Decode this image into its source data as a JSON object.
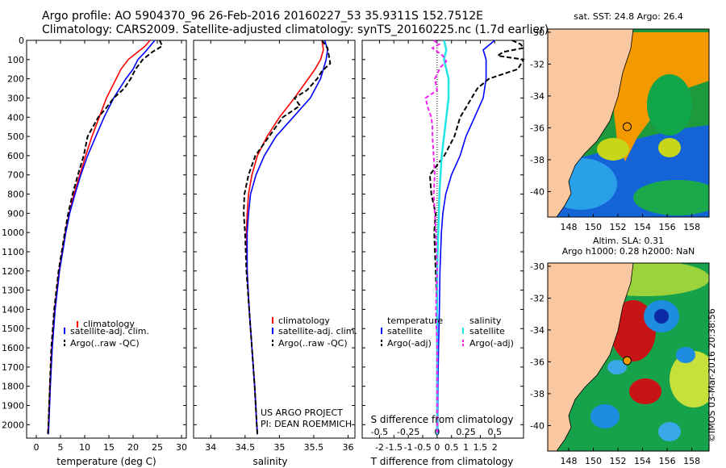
{
  "header": {
    "line1": "Argo profile: AO 5904370_96 26-Feb-2016 20160227_53 35.9311S 152.7512E",
    "line2": "Climatology: CARS2009. Satellite-adjusted climatology: synTS_20160225.nc (1.7d earlier)"
  },
  "credit": "©IMOS 03-Mar-2016 20:38:56",
  "colors": {
    "climatology": "#ff0000",
    "satellite": "#0000ff",
    "argo": "#000000",
    "sal_sat": "#22e6e6",
    "sal_argo": "#ee22ee",
    "land": "#f9c8a0",
    "ocean_sst": "#1e9a3c"
  },
  "chart_data": [
    {
      "type": "line",
      "id": "temperature",
      "xlabel": "temperature (deg C)",
      "ylabel": "",
      "xlim": [
        -2,
        31
      ],
      "ylim": [
        2070,
        0
      ],
      "xticks": [
        "0",
        "5",
        "10",
        "15",
        "20",
        "25",
        "30"
      ],
      "xtick_values": [
        0,
        5,
        10,
        15,
        20,
        25,
        30
      ],
      "yticks": [
        "0",
        "100",
        "200",
        "300",
        "400",
        "500",
        "600",
        "700",
        "800",
        "900",
        "1000",
        "1100",
        "1200",
        "1300",
        "1400",
        "1500",
        "1600",
        "1700",
        "1800",
        "1900",
        "2000"
      ],
      "ytick_values": [
        0,
        100,
        200,
        300,
        400,
        500,
        600,
        700,
        800,
        900,
        1000,
        1100,
        1200,
        1300,
        1400,
        1500,
        1600,
        1700,
        1800,
        1900,
        2000
      ],
      "legend": [
        "climatology",
        "satellite-adj. clim.",
        "Argo(..raw -QC)"
      ],
      "series": [
        {
          "name": "climatology",
          "depth": [
            0,
            30,
            60,
            100,
            150,
            200,
            300,
            400,
            500,
            600,
            700,
            800,
            900,
            1000,
            1200,
            1400,
            1600,
            1800,
            2000,
            2050
          ],
          "values": [
            23.5,
            22.5,
            21,
            19,
            17.5,
            16.5,
            14.5,
            13,
            11.5,
            10.2,
            9,
            7.8,
            6.8,
            6,
            4.7,
            3.8,
            3.2,
            2.8,
            2.5,
            2.4
          ]
        },
        {
          "name": "satellite-adj. clim.",
          "depth": [
            0,
            30,
            60,
            100,
            150,
            200,
            300,
            400,
            500,
            600,
            700,
            800,
            900,
            1000,
            1200,
            1400,
            1600,
            1800,
            2000,
            2050
          ],
          "values": [
            24.5,
            23.5,
            22.5,
            21,
            20,
            18.5,
            16,
            14,
            12.3,
            10.6,
            9.2,
            8,
            6.9,
            6.1,
            4.8,
            3.9,
            3.3,
            2.9,
            2.6,
            2.5
          ]
        },
        {
          "name": "Argo(..raw -QC)",
          "depth": [
            0,
            30,
            60,
            100,
            150,
            200,
            250,
            300,
            350,
            400,
            450,
            500,
            600,
            700,
            800,
            900,
            1000,
            1200,
            1400,
            1600,
            1800,
            2000,
            2050
          ],
          "values": [
            25.5,
            26,
            24,
            22,
            20.5,
            19.5,
            18.2,
            16,
            14.5,
            12.8,
            11.7,
            10.6,
            9.8,
            8.6,
            7.5,
            6.6,
            5.9,
            4.6,
            3.7,
            3.1,
            2.8,
            2.5,
            2.4
          ]
        }
      ]
    },
    {
      "type": "line",
      "id": "salinity",
      "xlabel": "salinity",
      "ylabel": "",
      "xlim": [
        33.75,
        36.1
      ],
      "ylim": [
        2070,
        0
      ],
      "xticks": [
        "34",
        "34.5",
        "35",
        "35.5",
        "36"
      ],
      "xtick_values": [
        34,
        34.5,
        35,
        35.5,
        36
      ],
      "legend": [
        "climatology",
        "satellite-adj. clim.",
        "Argo(..raw -QC)"
      ],
      "annotation": [
        "US ARGO PROJECT",
        "PI: DEAN ROEMMICH"
      ],
      "series": [
        {
          "name": "climatology",
          "depth": [
            0,
            50,
            100,
            150,
            200,
            300,
            400,
            500,
            600,
            700,
            800,
            900,
            1000,
            1200,
            1400,
            1600,
            1800,
            2000,
            2050
          ],
          "values": [
            35.62,
            35.64,
            35.6,
            35.52,
            35.42,
            35.22,
            35.0,
            34.82,
            34.68,
            34.6,
            34.55,
            34.53,
            34.52,
            34.53,
            34.56,
            34.6,
            34.64,
            34.67,
            34.68
          ]
        },
        {
          "name": "satellite-adj. clim.",
          "depth": [
            0,
            50,
            100,
            150,
            200,
            300,
            400,
            500,
            600,
            700,
            800,
            900,
            1000,
            1200,
            1400,
            1600,
            1800,
            2000,
            2050
          ],
          "values": [
            35.66,
            35.7,
            35.68,
            35.64,
            35.6,
            35.45,
            35.2,
            34.95,
            34.78,
            34.66,
            34.58,
            34.55,
            34.53,
            34.53,
            34.56,
            34.6,
            34.64,
            34.67,
            34.68
          ]
        },
        {
          "name": "Argo(..raw -QC)",
          "depth": [
            0,
            40,
            80,
            120,
            160,
            200,
            260,
            300,
            340,
            400,
            500,
            600,
            700,
            800,
            900,
            1000,
            1200,
            1400,
            1600,
            1800,
            2000,
            2050
          ],
          "values": [
            35.62,
            35.7,
            35.72,
            35.74,
            35.62,
            35.55,
            35.4,
            35.22,
            35.3,
            35.05,
            34.85,
            34.65,
            34.55,
            34.49,
            34.48,
            34.5,
            34.52,
            34.56,
            34.6,
            34.64,
            34.67,
            34.68
          ]
        }
      ]
    },
    {
      "type": "line",
      "id": "differences",
      "xlabel": "T difference from climatology",
      "xlabel_top": "S difference from climatology",
      "xlim": [
        -2.6,
        3.0
      ],
      "ylim": [
        2070,
        0
      ],
      "xticks": [
        "-2",
        "-1.5",
        "-1",
        "-0.5",
        "0",
        "0.5",
        "1",
        "1.5",
        "2"
      ],
      "xtick_values": [
        -2,
        -1.5,
        -1,
        -0.5,
        0,
        0.5,
        1,
        1.5,
        2
      ],
      "top_ticks": [
        "-0.5",
        "-0.25",
        "0",
        "0.25",
        "0.5"
      ],
      "top_tick_values": [
        -0.5,
        -0.25,
        0,
        0.25,
        0.5
      ],
      "legend_headers": [
        "temperature",
        "salinity"
      ],
      "legend": [
        "satellite",
        "Argo(-adj)",
        "satellite",
        "Argo(-adj)"
      ],
      "series": [
        {
          "name": "temperature satellite",
          "depth": [
            0,
            50,
            100,
            200,
            300,
            400,
            500,
            600,
            700,
            800,
            900,
            1000,
            1200,
            1400,
            1600,
            1800,
            2000,
            2050
          ],
          "values": [
            2.0,
            1.6,
            1.7,
            1.7,
            1.6,
            1.3,
            1.0,
            0.8,
            0.5,
            0.3,
            0.2,
            0.15,
            0.1,
            0.08,
            0.05,
            0.03,
            0.02,
            0.02
          ]
        },
        {
          "name": "temperature Argo(-adj)",
          "depth": [
            0,
            20,
            40,
            60,
            80,
            100,
            150,
            200,
            250,
            300,
            350,
            400,
            450,
            500,
            600,
            700,
            800,
            900,
            1000,
            1200,
            1400,
            1600,
            1800,
            2000,
            2050
          ],
          "values": [
            2.6,
            2.9,
            3.0,
            2.3,
            2.1,
            3.0,
            2.8,
            1.8,
            1.4,
            1.2,
            1.0,
            0.8,
            0.7,
            0.6,
            0.25,
            -0.25,
            -0.2,
            -0.05,
            -0.1,
            -0.05,
            0.0,
            0.0,
            0.0,
            0.0,
            0.0
          ]
        },
        {
          "name": "salinity satellite",
          "depth": [
            0,
            50,
            100,
            200,
            300,
            400,
            500,
            600,
            700,
            800,
            900,
            1000,
            1200,
            1400,
            1600,
            1800,
            2000,
            2050
          ],
          "values": [
            0.06,
            0.08,
            0.06,
            0.1,
            0.1,
            0.08,
            0.06,
            0.04,
            0.03,
            0.02,
            0.015,
            0.01,
            0.0,
            0.0,
            0.0,
            0.0,
            0.0,
            0.0
          ]
        },
        {
          "name": "salinity Argo(-adj)",
          "depth": [
            0,
            20,
            40,
            80,
            110,
            140,
            200,
            260,
            300,
            350,
            400,
            450,
            500,
            600,
            700,
            800,
            900,
            1000,
            1200,
            1400,
            1600,
            1800,
            2000,
            2050
          ],
          "values": [
            -0.03,
            0.02,
            -0.04,
            0.05,
            0.08,
            0.03,
            -0.02,
            0.0,
            -0.1,
            -0.08,
            -0.05,
            -0.04,
            -0.04,
            -0.03,
            -0.02,
            -0.03,
            -0.02,
            -0.01,
            0.0,
            -0.01,
            0.0,
            0.0,
            0.0,
            0.0
          ]
        }
      ]
    }
  ],
  "maps": {
    "sst": {
      "title": "sat. SST: 24.8 Argo: 26.4",
      "lon_ticks": [
        "148",
        "150",
        "152",
        "154",
        "156",
        "158"
      ],
      "lat_ticks": [
        "-30",
        "-32",
        "-34",
        "-36",
        "-38",
        "-40"
      ],
      "argo_lon": 152.75,
      "argo_lat": -35.93
    },
    "sla": {
      "title1": "Altim. SLA: 0.31",
      "title2": "Argo h1000: 0.28 h2000: NaN",
      "lon_ticks": [
        "148",
        "150",
        "152",
        "154",
        "156",
        "158"
      ],
      "lat_ticks": [
        "-30",
        "-32",
        "-34",
        "-36",
        "-38",
        "-40"
      ],
      "argo_lon": 152.75,
      "argo_lat": -35.93
    }
  }
}
